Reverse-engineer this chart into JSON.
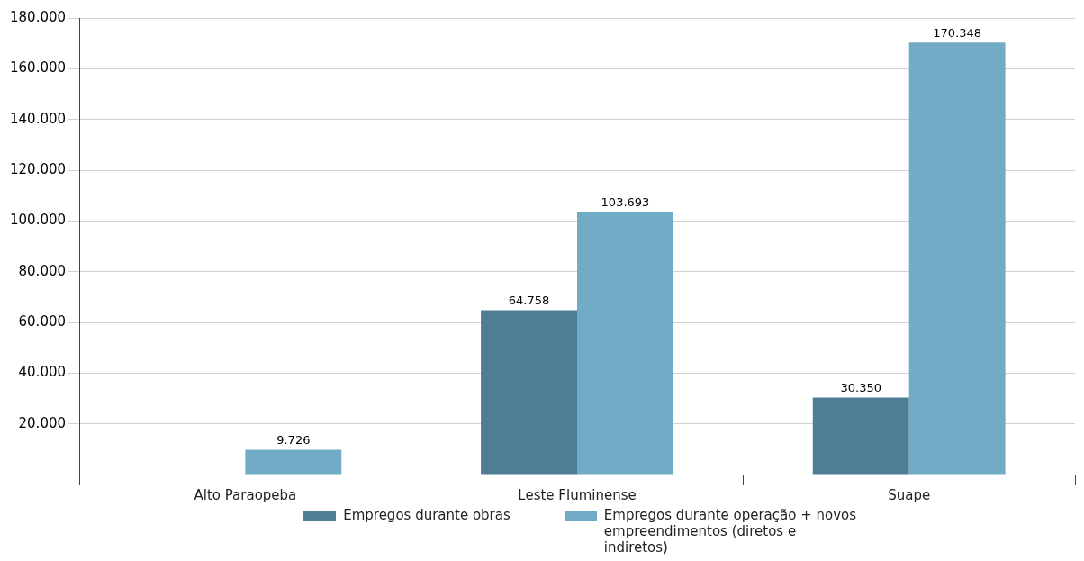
{
  "chart_data": {
    "type": "bar",
    "categories": [
      "Alto Paraopeba",
      "Leste Fluminense",
      "Suape"
    ],
    "series": [
      {
        "name": "Empregos durante obras",
        "color": "#4f7d96",
        "values": [
          null,
          64758,
          30350
        ],
        "value_labels": [
          null,
          "64.758",
          "30.350"
        ]
      },
      {
        "name": "Empregos durante operação + novos empreendimentos (diretos e indiretos)",
        "color": "#72abc6",
        "values": [
          9726,
          103693,
          170348
        ],
        "value_labels": [
          "9.726",
          "103.693",
          "170.348"
        ]
      }
    ],
    "ylim": [
      0,
      180000
    ],
    "yticks": [
      {
        "value": 0,
        "label": null
      },
      {
        "value": 20000,
        "label": "20.000"
      },
      {
        "value": 40000,
        "label": "40.000"
      },
      {
        "value": 60000,
        "label": "60.000"
      },
      {
        "value": 80000,
        "label": "80.000"
      },
      {
        "value": 100000,
        "label": "100.000"
      },
      {
        "value": 120000,
        "label": "120.000"
      },
      {
        "value": 140000,
        "label": "140.000"
      },
      {
        "value": 160000,
        "label": "160.000"
      },
      {
        "value": 180000,
        "label": "180.000"
      }
    ],
    "grid": "y",
    "legend": "bottom"
  }
}
